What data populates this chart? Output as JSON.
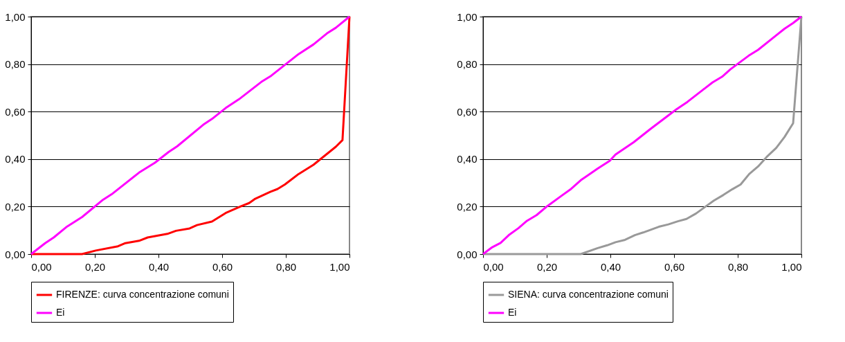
{
  "chart_data": [
    {
      "type": "line",
      "xlim": [
        0,
        1
      ],
      "ylim": [
        0,
        1
      ],
      "xticks": [
        {
          "value": 0,
          "label": "0,00"
        },
        {
          "value": 0.2,
          "label": "0,20"
        },
        {
          "value": 0.4,
          "label": "0,40"
        },
        {
          "value": 0.6,
          "label": "0,60"
        },
        {
          "value": 0.8,
          "label": "0,80"
        },
        {
          "value": 1,
          "label": "1,00"
        }
      ],
      "yticks": [
        {
          "value": 0,
          "label": "0,00"
        },
        {
          "value": 0.2,
          "label": "0,20"
        },
        {
          "value": 0.4,
          "label": "0,40"
        },
        {
          "value": 0.6,
          "label": "0,60"
        },
        {
          "value": 0.8,
          "label": "0,80"
        },
        {
          "value": 1,
          "label": "1,00"
        }
      ],
      "grid": "y",
      "legend": "bottom",
      "marker": "none",
      "series": [
        {
          "name": "FIRENZE: curva concentrazione comuni",
          "color": "#ff0000",
          "x": [
            0,
            0.16,
            0.203,
            0.273,
            0.296,
            0.339,
            0.366,
            0.428,
            0.455,
            0.498,
            0.521,
            0.568,
            0.611,
            0.657,
            0.685,
            0.704,
            0.751,
            0.774,
            0.797,
            0.84,
            0.887,
            0.957,
            0.978,
            1
          ],
          "values": [
            0,
            0,
            0.015,
            0.033,
            0.046,
            0.056,
            0.07,
            0.085,
            0.098,
            0.108,
            0.122,
            0.137,
            0.173,
            0.2,
            0.215,
            0.233,
            0.262,
            0.274,
            0.293,
            0.337,
            0.376,
            0.452,
            0.48,
            1
          ]
        },
        {
          "name": "Ei",
          "color": "#ff00ff",
          "x": [
            0,
            0.044,
            0.071,
            0.113,
            0.16,
            0.226,
            0.253,
            0.339,
            0.389,
            0.432,
            0.459,
            0.541,
            0.568,
            0.611,
            0.653,
            0.723,
            0.754,
            0.84,
            0.887,
            0.929,
            0.957,
            1
          ],
          "values": [
            0,
            0.046,
            0.07,
            0.116,
            0.156,
            0.229,
            0.252,
            0.343,
            0.385,
            0.43,
            0.454,
            0.545,
            0.569,
            0.615,
            0.652,
            0.725,
            0.751,
            0.842,
            0.883,
            0.929,
            0.953,
            1
          ]
        }
      ]
    },
    {
      "type": "line",
      "xlim": [
        0,
        1
      ],
      "ylim": [
        0,
        1
      ],
      "xticks": [
        {
          "value": 0,
          "label": "0,00"
        },
        {
          "value": 0.2,
          "label": "0,20"
        },
        {
          "value": 0.4,
          "label": "0,40"
        },
        {
          "value": 0.6,
          "label": "0,60"
        },
        {
          "value": 0.8,
          "label": "0,80"
        },
        {
          "value": 1,
          "label": "1,00"
        }
      ],
      "yticks": [
        {
          "value": 0,
          "label": "0,00"
        },
        {
          "value": 0.2,
          "label": "0,20"
        },
        {
          "value": 0.4,
          "label": "0,40"
        },
        {
          "value": 0.6,
          "label": "0,60"
        },
        {
          "value": 0.8,
          "label": "0,80"
        },
        {
          "value": 1,
          "label": "1,00"
        }
      ],
      "grid": "y",
      "legend": "bottom",
      "marker": "none",
      "series": [
        {
          "name": "SIENA: curva concentrazione comuni",
          "color": "#999999",
          "x": [
            0,
            0.307,
            0.36,
            0.39,
            0.416,
            0.446,
            0.477,
            0.503,
            0.552,
            0.582,
            0.612,
            0.639,
            0.669,
            0.699,
            0.725,
            0.755,
            0.783,
            0.809,
            0.836,
            0.864,
            0.891,
            0.921,
            0.947,
            0.974,
            1
          ],
          "values": [
            0,
            0,
            0.025,
            0.037,
            0.05,
            0.06,
            0.08,
            0.091,
            0.115,
            0.125,
            0.138,
            0.148,
            0.171,
            0.2,
            0.225,
            0.249,
            0.273,
            0.293,
            0.337,
            0.369,
            0.409,
            0.447,
            0.493,
            0.551,
            1
          ]
        },
        {
          "name": "Ei",
          "color": "#ff00ff",
          "x": [
            0,
            0.029,
            0.055,
            0.081,
            0.111,
            0.138,
            0.168,
            0.202,
            0.247,
            0.277,
            0.307,
            0.36,
            0.398,
            0.416,
            0.473,
            0.526,
            0.582,
            0.608,
            0.642,
            0.691,
            0.721,
            0.751,
            0.777,
            0.834,
            0.864,
            0.92,
            0.947,
            0.974,
            1
          ],
          "values": [
            0,
            0.029,
            0.047,
            0.08,
            0.109,
            0.14,
            0.164,
            0.202,
            0.246,
            0.275,
            0.311,
            0.36,
            0.393,
            0.419,
            0.471,
            0.527,
            0.584,
            0.61,
            0.641,
            0.692,
            0.723,
            0.747,
            0.778,
            0.835,
            0.86,
            0.92,
            0.949,
            0.973,
            1
          ]
        }
      ]
    }
  ]
}
